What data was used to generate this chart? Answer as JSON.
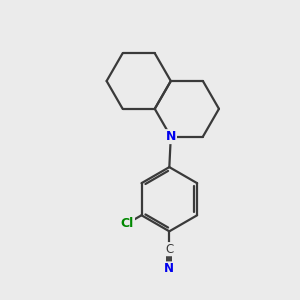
{
  "background_color": "#ebebeb",
  "bond_color": "#3a3a3a",
  "N_color": "#0000ee",
  "Cl_color": "#008800",
  "line_width": 1.6,
  "figsize": [
    3.0,
    3.0
  ],
  "dpi": 100,
  "xlim": [
    0,
    10
  ],
  "ylim": [
    0,
    10
  ]
}
